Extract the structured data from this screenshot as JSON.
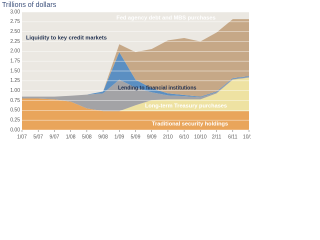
{
  "chart_data": {
    "type": "stacked-area",
    "y_label": "Trillions of dollars",
    "categories": [
      "1/07",
      "5/07",
      "9/07",
      "1/08",
      "5/08",
      "9/08",
      "1/09",
      "5/09",
      "9/09",
      "2/10",
      "6/10",
      "10/10",
      "2/11",
      "6/11",
      "10/11"
    ],
    "series": [
      {
        "name": "Traditional security holdings",
        "color": "#e9a55b",
        "values": [
          0.8,
          0.8,
          0.78,
          0.72,
          0.55,
          0.48,
          0.48,
          0.48,
          0.48,
          0.48,
          0.48,
          0.48,
          0.48,
          0.48,
          0.48
        ]
      },
      {
        "name": "Long-term Treasury purchases",
        "color": "#eee2a2",
        "values": [
          0,
          0,
          0,
          0,
          0,
          0,
          0,
          0.15,
          0.28,
          0.3,
          0.3,
          0.3,
          0.45,
          0.8,
          0.85
        ]
      },
      {
        "name": "Lending to financial institutions",
        "color": "#a3a3a6",
        "values": [
          0.05,
          0.05,
          0.07,
          0.15,
          0.35,
          0.45,
          0.8,
          0.45,
          0.2,
          0.1,
          0.08,
          0.05,
          0.03,
          0.02,
          0.02
        ]
      },
      {
        "name": "Liquidity to key credit markets",
        "color": "#5b8fc2",
        "values": [
          0,
          0,
          0,
          0,
          0,
          0.05,
          0.7,
          0.2,
          0.1,
          0.05,
          0.03,
          0.02,
          0.02,
          0.02,
          0.02
        ]
      },
      {
        "name": "Fed agency debt and MBS purchases",
        "color": "#c6a887",
        "values": [
          0,
          0,
          0,
          0,
          0,
          0,
          0.2,
          0.7,
          1.0,
          1.35,
          1.45,
          1.4,
          1.5,
          1.5,
          1.45
        ]
      }
    ],
    "ylim": [
      0,
      3
    ],
    "yticks": [
      {
        "value": 0,
        "label": "0.00"
      },
      {
        "value": 0.25,
        "label": "0.25"
      },
      {
        "value": 0.5,
        "label": "0.50"
      },
      {
        "value": 0.75,
        "label": "0.75"
      },
      {
        "value": 1,
        "label": "1.00"
      },
      {
        "value": 1.25,
        "label": "1.25"
      },
      {
        "value": 1.5,
        "label": "1.50"
      },
      {
        "value": 1.75,
        "label": "1.75"
      },
      {
        "value": 2,
        "label": "2.00"
      },
      {
        "value": 2.25,
        "label": "2.25"
      },
      {
        "value": 2.5,
        "label": "2.50"
      },
      {
        "value": 2.75,
        "label": "2.75"
      },
      {
        "value": 3,
        "label": "3.00"
      }
    ],
    "grid": true
  }
}
